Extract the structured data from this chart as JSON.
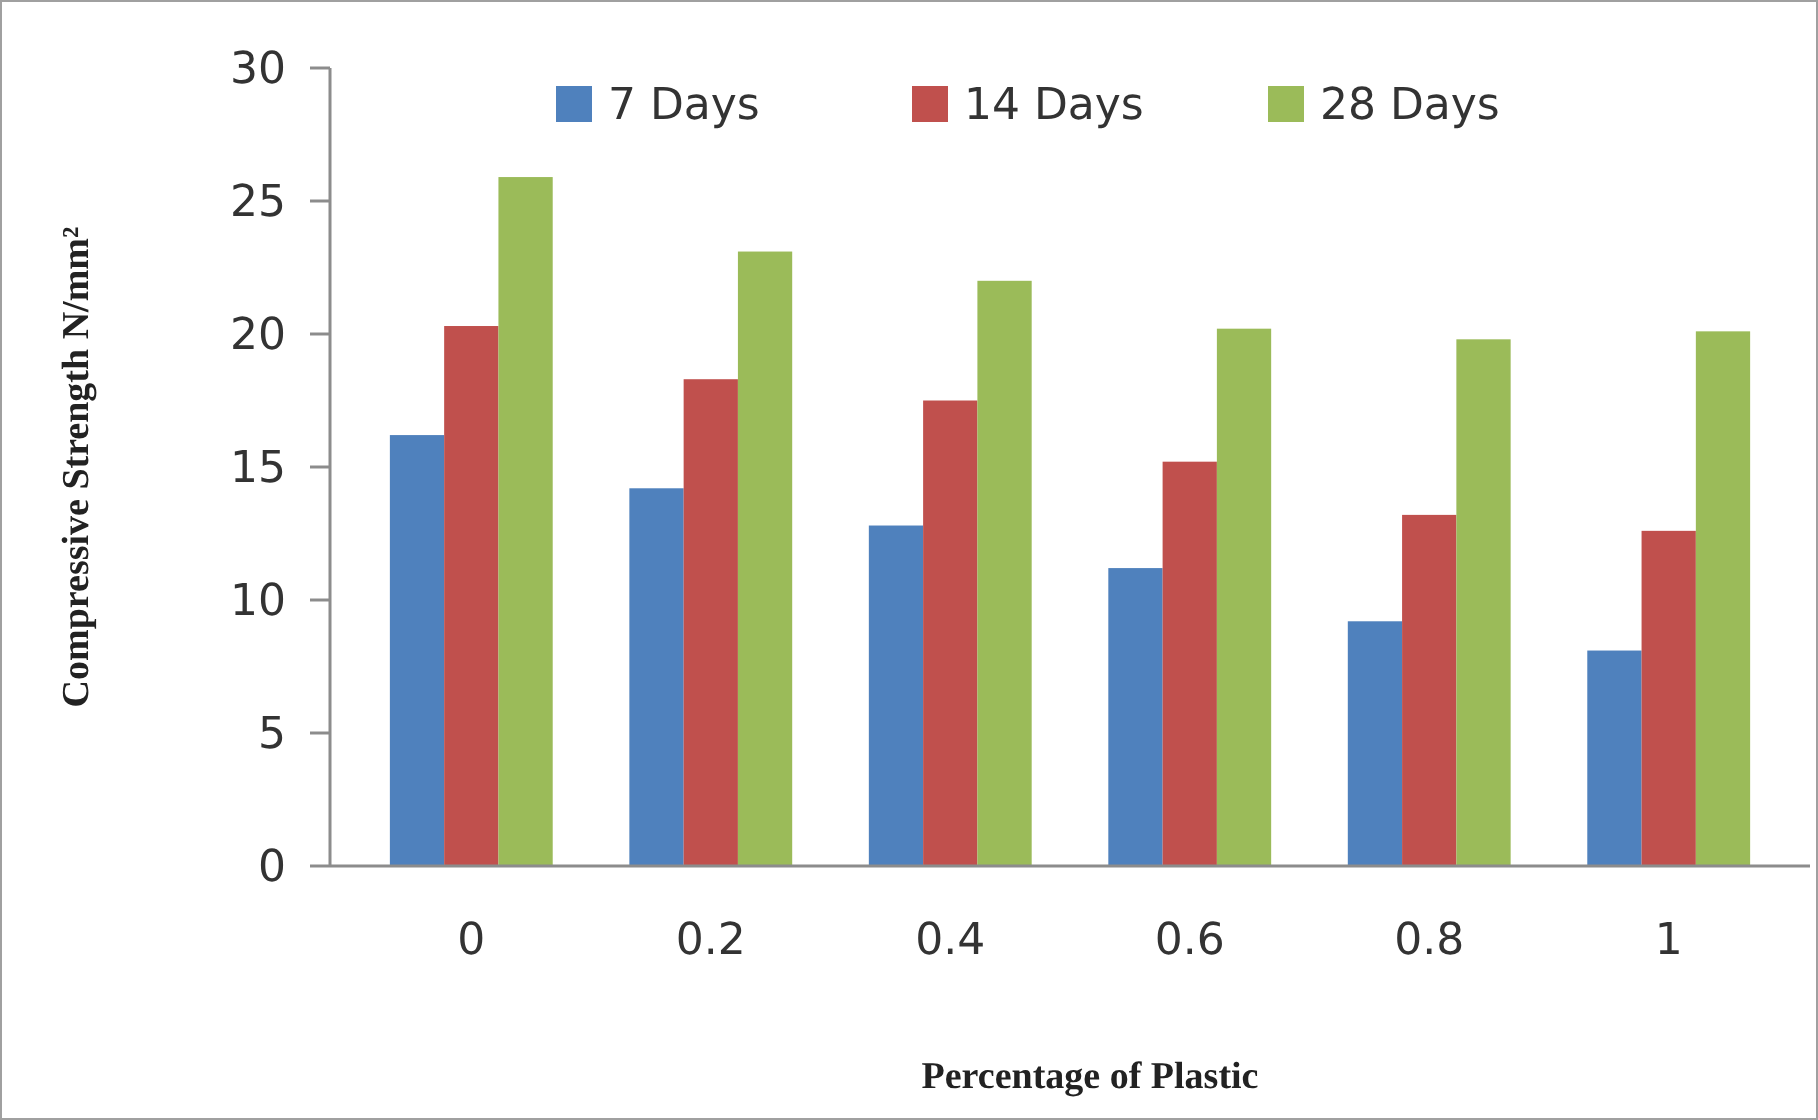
{
  "chart_data": {
    "type": "bar",
    "xlabel": "Percentage of Plastic",
    "ylabel": "Compressive Strength N/mm²",
    "categories": [
      "0",
      "0.2",
      "0.4",
      "0.6",
      "0.8",
      "1"
    ],
    "series": [
      {
        "name": "7 Days",
        "color": "#4f81bd",
        "values": [
          16.2,
          14.2,
          12.8,
          11.2,
          9.2,
          8.1
        ]
      },
      {
        "name": "14 Days",
        "color": "#c0504d",
        "values": [
          20.3,
          18.3,
          17.5,
          15.2,
          13.2,
          12.6
        ]
      },
      {
        "name": "28 Days",
        "color": "#9bbb59",
        "values": [
          25.9,
          23.1,
          22.0,
          20.2,
          19.8,
          20.1
        ]
      }
    ],
    "ylim": [
      0,
      30
    ],
    "yticks": [
      0,
      5,
      10,
      15,
      20,
      25,
      30
    ],
    "grid": false,
    "legend": "top"
  }
}
